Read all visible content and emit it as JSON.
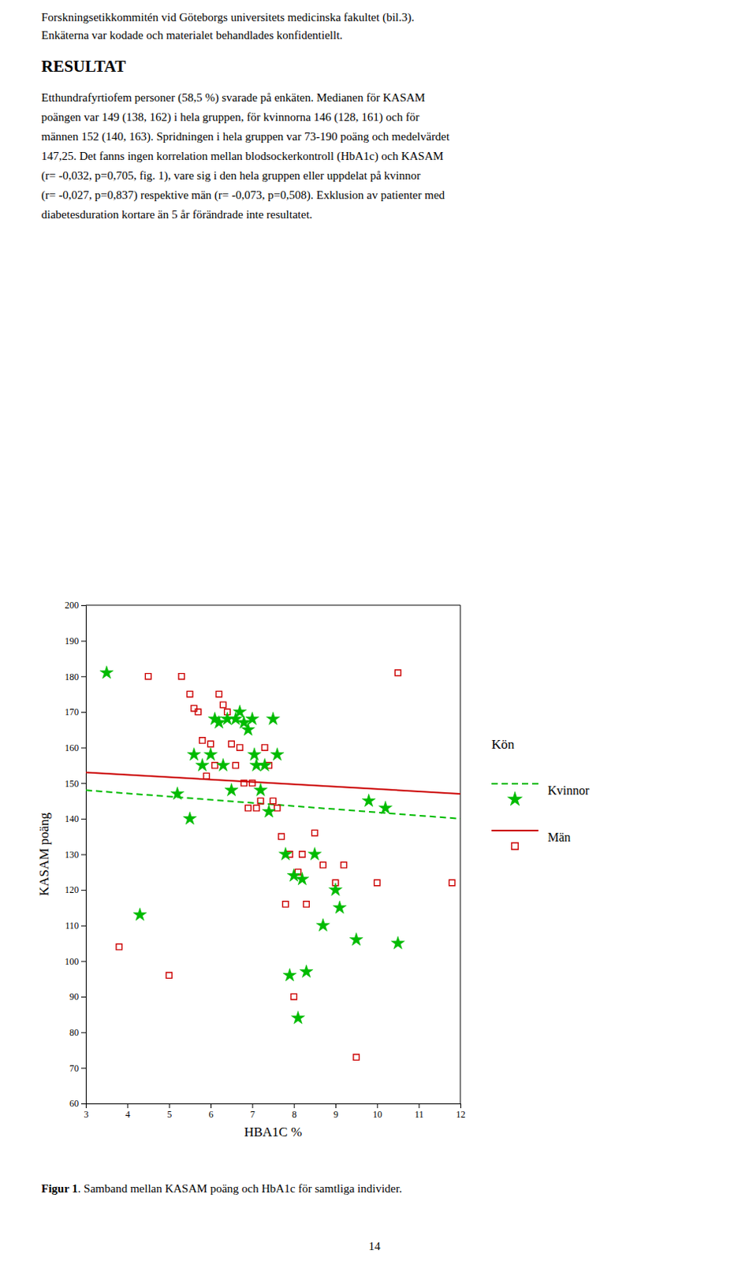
{
  "page": {
    "text_line1": "Forskningsetikkommitén vid Göteborgs universitets medicinska fakultet (bil.3).",
    "text_line2": "Enkäterna var kodade och materialet behandlades konfidentiellt.",
    "heading": "RESULTAT",
    "body_lines": [
      "Etthundrafyrtiofem personer (58,5 %) svarade på enkäten. Medianen för KASAM",
      "poängen var 149 (138, 162) i hela gruppen, för kvinnorna 146 (128, 161) och för",
      "männen 152 (140, 163). Spridningen i hela gruppen var 73-190 poäng och medelvärdet",
      "147,25. Det fanns ingen korrelation mellan blodsockerkontroll (HbA1c) och KASAM",
      "(r= -0,032, p=0,705, fig. 1), vare sig i den hela gruppen eller uppdelat på kvinnor",
      "(r= -0,027, p=0,837) respektive män (r= -0,073, p=0,508). Exklusion av patienter med",
      "diabetesduration kortare än 5 år förändrade inte resultatet."
    ],
    "caption_bold": "Figur 1",
    "caption_rest": ". Samband mellan KASAM poäng och HbA1c för samtliga individer.",
    "page_number": "14"
  },
  "chart_data": {
    "type": "scatter",
    "xlabel": "HBA1C %",
    "ylabel": "KASAM poäng",
    "xlim": [
      3,
      12
    ],
    "ylim": [
      60,
      200
    ],
    "xticks": [
      3,
      4,
      5,
      6,
      7,
      8,
      9,
      10,
      11,
      12
    ],
    "yticks": [
      60,
      70,
      80,
      90,
      100,
      110,
      120,
      130,
      140,
      150,
      160,
      170,
      180,
      190,
      200
    ],
    "grid": false,
    "legend": "right",
    "legend_title": "Kön",
    "series": [
      {
        "name": "Kvinnor",
        "color": "#00BB00",
        "marker": "star",
        "line_style": "dashed",
        "x": [
          3.5,
          4.3,
          5.2,
          5.5,
          5.6,
          5.8,
          6.0,
          6.1,
          6.2,
          6.3,
          6.4,
          6.5,
          6.6,
          6.7,
          6.8,
          6.9,
          7.0,
          7.05,
          7.1,
          7.2,
          7.3,
          7.4,
          7.5,
          7.6,
          7.8,
          7.9,
          8.0,
          8.1,
          8.2,
          8.3,
          8.5,
          8.7,
          9.0,
          9.1,
          9.5,
          9.8,
          10.2,
          10.5
        ],
        "values": [
          181,
          113,
          147,
          140,
          158,
          155,
          158,
          168,
          167,
          155,
          168,
          148,
          168,
          170,
          167,
          165,
          168,
          158,
          155,
          148,
          155,
          142,
          168,
          158,
          130,
          96,
          124,
          84,
          123,
          97,
          130,
          110,
          120,
          115,
          106,
          145,
          143,
          105
        ],
        "trend": {
          "x": [
            3,
            12
          ],
          "values": [
            148,
            140
          ]
        }
      },
      {
        "name": "Män",
        "color": "#CC0000",
        "marker": "open-square",
        "line_style": "solid",
        "x": [
          3.8,
          4.5,
          5.0,
          5.3,
          5.5,
          5.6,
          5.7,
          5.8,
          5.9,
          6.0,
          6.1,
          6.2,
          6.3,
          6.4,
          6.5,
          6.6,
          6.7,
          6.8,
          6.9,
          7.0,
          7.1,
          7.2,
          7.3,
          7.4,
          7.5,
          7.6,
          7.7,
          7.8,
          7.9,
          8.0,
          8.1,
          8.2,
          8.3,
          8.5,
          8.7,
          9.0,
          9.2,
          9.5,
          10.0,
          10.5,
          11.8
        ],
        "values": [
          104,
          180,
          96,
          180,
          175,
          171,
          170,
          162,
          152,
          161,
          155,
          175,
          172,
          170,
          161,
          155,
          160,
          150,
          143,
          150,
          143,
          145,
          160,
          155,
          145,
          143,
          135,
          116,
          130,
          90,
          125,
          130,
          116,
          136,
          127,
          122,
          127,
          73,
          122,
          181,
          122
        ],
        "trend": {
          "x": [
            3,
            12
          ],
          "values": [
            153,
            147
          ]
        }
      }
    ]
  }
}
